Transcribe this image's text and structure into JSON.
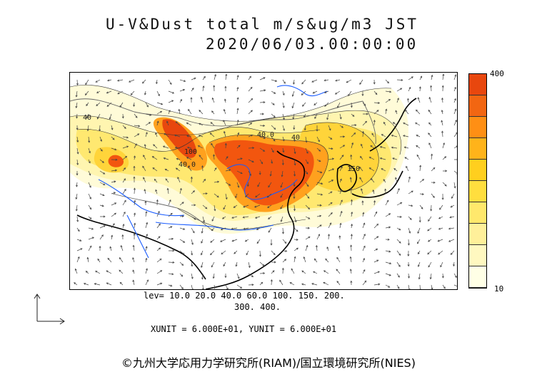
{
  "title": {
    "line1": "U-V&Dust total m/s&ug/m3 JST",
    "line2": "2020/06/03.00:00:00"
  },
  "legend": {
    "max_label": "400",
    "min_label": "10",
    "colors": [
      "#ffffe6",
      "#fff8c0",
      "#fff09a",
      "#ffe86c",
      "#ffde3e",
      "#ffcf1e",
      "#ffb31a",
      "#ff8f14",
      "#f26612",
      "#e8470e"
    ]
  },
  "levels": {
    "line1": "lev= 10.0 20.0 40.0 60.0 100. 150. 200.",
    "line2": "300. 400."
  },
  "units": "XUNIT = 6.000E+01, YUNIT = 6.000E+01",
  "contour_labels": [
    "40",
    "40.0",
    "100",
    "40.0",
    "40",
    "150"
  ],
  "copyright": "©九州大学応用力学研究所(RIAM)/国立環境研究所(NIES)",
  "colors": {
    "coast": "#000000",
    "river": "#1a5cff",
    "border": "#555555",
    "arrow": "#444444"
  }
}
